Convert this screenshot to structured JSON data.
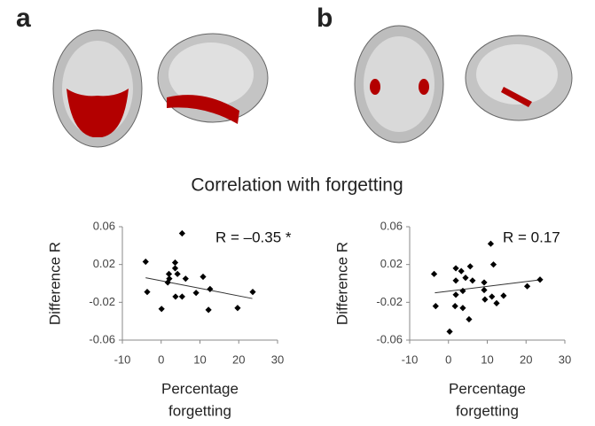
{
  "panels": [
    "a",
    "b"
  ],
  "heading": "Correlation with forgetting",
  "chart_data": [
    {
      "type": "scatter",
      "annotation": "R = –0.35 *",
      "ylabel": "Difference R",
      "xlabel": [
        "Percentage",
        "forgetting"
      ],
      "xlim": [
        -10,
        30
      ],
      "xticks": [
        -10,
        0,
        10,
        20,
        30
      ],
      "ylim": [
        -0.06,
        0.06
      ],
      "yticks": [
        0.06,
        0.02,
        -0.02,
        -0.06
      ],
      "color": "#000000",
      "x": [
        5.4,
        -4,
        3.6,
        3.6,
        2,
        2.1,
        4.2,
        10.8,
        6.3,
        1.7,
        12.6,
        -3.6,
        3.7,
        5.4,
        9,
        23.6,
        0.1,
        12.2,
        19.7
      ],
      "y": [
        0.053,
        0.023,
        0.022,
        0.016,
        0.01,
        0.005,
        0.01,
        0.007,
        0.005,
        0.001,
        -0.006,
        -0.009,
        -0.014,
        -0.014,
        -0.01,
        -0.009,
        -0.027,
        -0.028,
        -0.026
      ],
      "trendline": {
        "x": [
          -4,
          23.5
        ],
        "y": [
          0.006,
          -0.016
        ]
      }
    },
    {
      "type": "scatter",
      "annotation": "R = 0.17",
      "ylabel": "Difference R",
      "xlabel": [
        "Percentage",
        "forgetting"
      ],
      "xlim": [
        -10,
        30
      ],
      "xticks": [
        -10,
        0,
        10,
        20,
        30
      ],
      "ylim": [
        -0.06,
        0.06
      ],
      "yticks": [
        0.06,
        0.02,
        -0.02,
        -0.06
      ],
      "color": "#000000",
      "x": [
        10.9,
        11.6,
        5.6,
        -3.7,
        1.9,
        3.3,
        4.4,
        1.9,
        6.2,
        9.2,
        23.6,
        20.3,
        3.7,
        1.9,
        9.2,
        14.2,
        11.2,
        9.4,
        -3.3,
        1.7,
        3.7,
        12.4,
        5.3,
        0.3
      ],
      "y": [
        0.042,
        0.02,
        0.018,
        0.01,
        0.016,
        0.013,
        0.006,
        0.003,
        0.003,
        0.001,
        0.004,
        -0.003,
        -0.008,
        -0.012,
        -0.007,
        -0.013,
        -0.014,
        -0.017,
        -0.024,
        -0.024,
        -0.026,
        -0.021,
        -0.038,
        -0.051
      ],
      "trendline": {
        "x": [
          -3.5,
          24
        ],
        "y": [
          -0.01,
          0.004
        ]
      }
    }
  ]
}
